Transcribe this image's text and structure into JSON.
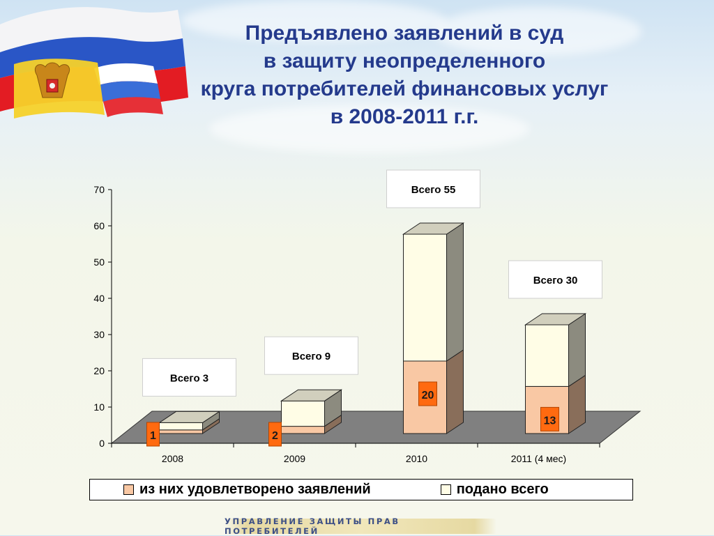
{
  "title": {
    "lines": [
      "Предъявлено заявлений в суд",
      "в защиту неопределенного",
      "круга потребителей финансовых услуг",
      "в 2008-2011 г.г."
    ]
  },
  "chart_data": {
    "type": "bar",
    "stacked": true,
    "three_d": true,
    "categories": [
      "2008",
      "2009",
      "2010",
      "2011 (4 мес)"
    ],
    "series": [
      {
        "name": "из них удовлетворено заявлений",
        "values": [
          1,
          2,
          20,
          13
        ],
        "color": "#f9c8a4"
      },
      {
        "name": "подано всего",
        "values": [
          3,
          9,
          55,
          30
        ],
        "color": "#fffde6"
      }
    ],
    "data_labels": [
      "1",
      "2",
      "20",
      "13"
    ],
    "totals_labels": [
      "Всего 3",
      "Всего 9",
      "Всего 55",
      "Всего 30"
    ],
    "ylim": [
      0,
      70
    ],
    "yticks": [
      "0",
      "10",
      "20",
      "30",
      "40",
      "50",
      "60",
      "70"
    ],
    "label_color": "#ff6a10",
    "floor_color": "#808080",
    "legend_position": "bottom"
  },
  "footer": {
    "text": "УПРАВЛЕНИЕ ЗАЩИТЫ ПРАВ ПОТРЕБИТЕЛЕЙ"
  }
}
